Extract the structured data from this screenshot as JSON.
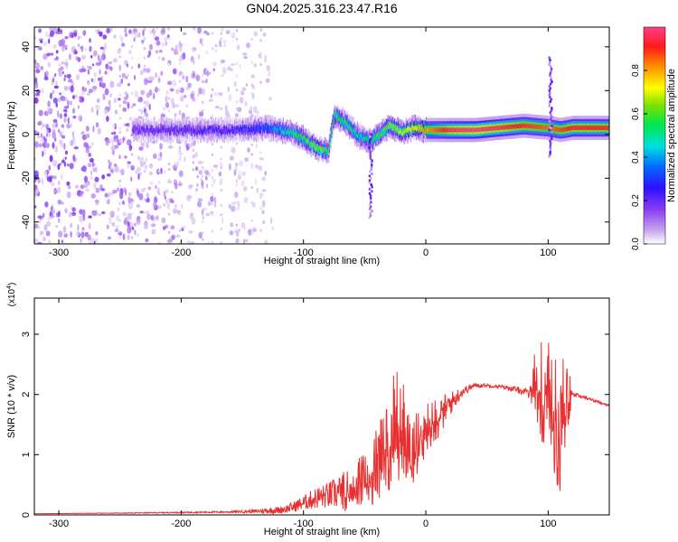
{
  "figure_title": "GN04.2025.316.23.47.R16",
  "chart_data": [
    {
      "type": "heatmap",
      "xlabel": "Height of straight line (km)",
      "ylabel": "Frequency (Hz)",
      "xlim": [
        -320,
        150
      ],
      "ylim": [
        -50,
        49
      ],
      "x_ticks": [
        -300,
        -200,
        -100,
        0,
        100
      ],
      "y_ticks": [
        -40,
        -20,
        0,
        20,
        40
      ],
      "x_tick_labels": [
        "-300",
        "-200",
        "-100",
        "0",
        "100"
      ],
      "y_tick_labels": [
        "-40",
        "-20",
        "0",
        "20",
        "40"
      ],
      "grid": false,
      "colorbar": {
        "label": "Normalized spectral amplitude",
        "range": [
          0,
          1
        ],
        "ticks": [
          0.0,
          0.2,
          0.4,
          0.6,
          0.8
        ],
        "tick_labels": [
          "0.0",
          "0.2",
          "0.4",
          "0.6",
          "0.8"
        ],
        "colormap": [
          "#ffffff",
          "#c9a8ef",
          "#8a3cf0",
          "#2b10ff",
          "#0070ff",
          "#00e0e0",
          "#00e64c",
          "#7fe000",
          "#ffff00",
          "#ff8c00",
          "#ff1a1a",
          "#ff3f8c"
        ]
      },
      "noise_region_x": [
        -320,
        -125
      ],
      "ridge": {
        "x": [
          -240,
          -200,
          -160,
          -130,
          -110,
          -100,
          -90,
          -80,
          -75,
          -65,
          -55,
          -45,
          -38,
          -30,
          -20,
          -10,
          0,
          20,
          40,
          60,
          80,
          100,
          110,
          120,
          150
        ],
        "freq": [
          2,
          2,
          2,
          3,
          1,
          -2,
          -6,
          -8,
          9,
          5,
          -1,
          -3,
          0,
          4,
          1,
          3,
          2,
          2,
          2,
          3,
          4,
          3,
          2,
          3,
          3
        ],
        "amplitude": [
          0.18,
          0.2,
          0.22,
          0.3,
          0.5,
          0.55,
          0.6,
          0.55,
          0.55,
          0.5,
          0.45,
          0.5,
          0.55,
          0.6,
          0.65,
          0.7,
          0.8,
          0.95,
          0.98,
          0.95,
          0.9,
          0.85,
          0.88,
          0.92,
          0.9
        ]
      },
      "spikes": [
        {
          "x": -45,
          "freq_min": -38,
          "freq_max": 0
        },
        {
          "x": 102,
          "freq_min": -10,
          "freq_max": 35
        }
      ]
    },
    {
      "type": "line",
      "xlabel": "Height of straight line (km)",
      "ylabel": "SNR (10 * v/v)",
      "y_multiplier": "(x10",
      "y_multiplier_exp": "4",
      "y_multiplier_close": ")",
      "xlim": [
        -320,
        150
      ],
      "ylim": [
        0,
        3.6
      ],
      "x_ticks": [
        -300,
        -200,
        -100,
        0,
        100
      ],
      "y_ticks": [
        0,
        1,
        2,
        3
      ],
      "x_tick_labels": [
        "-300",
        "-200",
        "-100",
        "0",
        "100"
      ],
      "y_tick_labels": [
        "0",
        "1",
        "2",
        "3"
      ],
      "grid": false,
      "series": [
        {
          "color": "#e83030",
          "x": [
            -320,
            -250,
            -200,
            -160,
            -140,
            -130,
            -120,
            -110,
            -100,
            -90,
            -80,
            -70,
            -60,
            -50,
            -40,
            -30,
            -25,
            -20,
            -15,
            -10,
            -5,
            0,
            10,
            20,
            30,
            40,
            50,
            60,
            70,
            80,
            85,
            90,
            95,
            100,
            105,
            110,
            115,
            120,
            130,
            140,
            150
          ],
          "values": [
            0.02,
            0.03,
            0.04,
            0.05,
            0.06,
            0.07,
            0.08,
            0.12,
            0.2,
            0.28,
            0.32,
            0.38,
            0.5,
            0.65,
            0.85,
            1.2,
            1.7,
            1.5,
            1.2,
            1.1,
            1.35,
            1.45,
            1.6,
            1.85,
            2.05,
            2.15,
            2.15,
            2.13,
            2.1,
            2.05,
            2.0,
            2.3,
            2.1,
            2.5,
            1.9,
            1.5,
            1.95,
            2.0,
            1.95,
            1.88,
            1.82
          ],
          "jitter": [
            0,
            0.005,
            0.01,
            0.015,
            0.03,
            0.05,
            0.06,
            0.08,
            0.12,
            0.18,
            0.22,
            0.3,
            0.35,
            0.45,
            0.6,
            0.8,
            0.9,
            0.9,
            0.6,
            0.5,
            0.45,
            0.4,
            0.35,
            0.2,
            0.08,
            0.04,
            0.03,
            0.03,
            0.04,
            0.06,
            0.1,
            0.6,
            0.8,
            1.0,
            1.1,
            1.2,
            0.7,
            0.05,
            0.03,
            0.02,
            0.02
          ]
        }
      ]
    }
  ]
}
